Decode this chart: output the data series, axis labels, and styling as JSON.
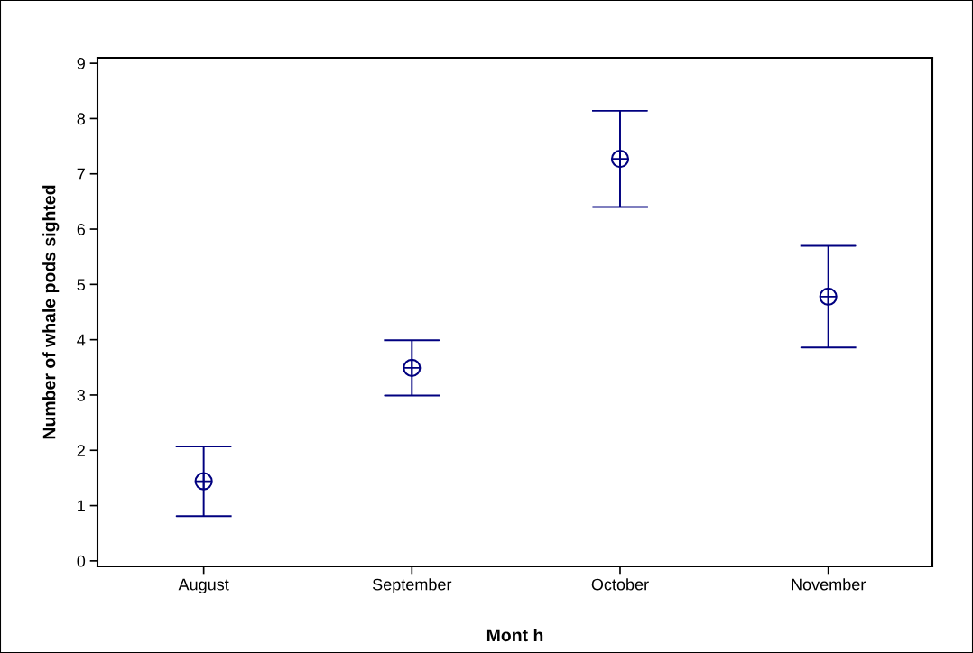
{
  "chart_data": {
    "type": "scatter",
    "xlabel": "Mont h",
    "ylabel": "Number of whale pods sighted",
    "categories": [
      "August",
      "September",
      "October",
      "November"
    ],
    "color": "#000080",
    "values": [
      1.44,
      3.49,
      7.27,
      4.78
    ],
    "errors": [
      0.63,
      0.5,
      0.87,
      0.92
    ],
    "ylim": [
      -0.1,
      9.1
    ],
    "yticks": [
      0,
      1,
      2,
      3,
      4,
      5,
      6,
      7,
      8,
      9
    ],
    "grid": false,
    "legend": false,
    "marker": "circle"
  }
}
